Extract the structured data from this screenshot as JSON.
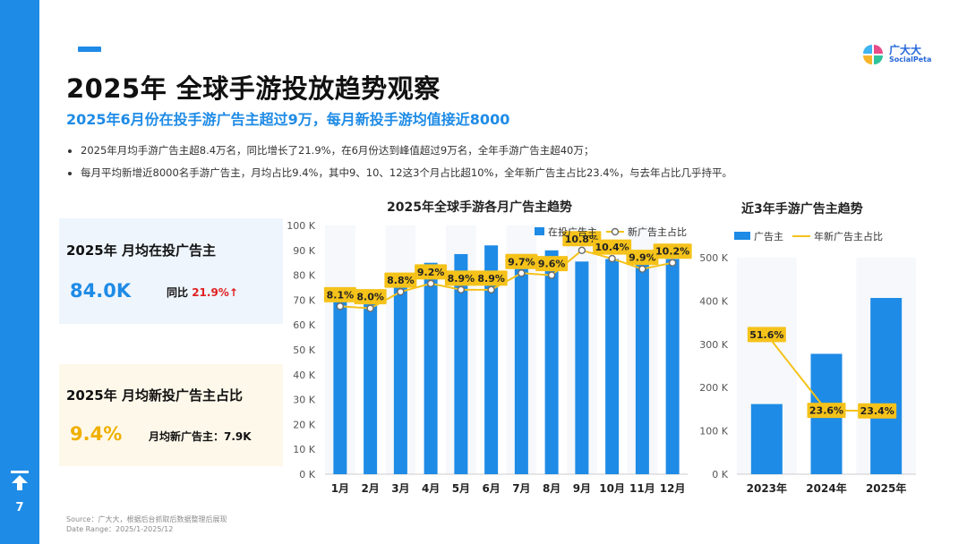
{
  "page": {
    "title": "2025年 全球手游投放趋势观察",
    "subtitle": "2025年6月份在投手游广告主超过9万，每月新投手游均值接近8000",
    "page_number": "7",
    "bullets": [
      "2025年月均手游广告主超8.4万名，同比增长了21.9%，在6月份达到峰值超过9万名，全年手游广告主超40万；",
      "每月平均新增近8000名手游广告主，月均占比9.4%，其中9、10、12这3个月占比超10%，全年新广告主占比23.4%，与去年占比几乎持平。"
    ],
    "source_lines": [
      "Source：广大大，根据后台抓取后数据整理后展现",
      "Date Range：2025/1-2025/12"
    ]
  },
  "logo": {
    "name": "广大大",
    "sub": "SocialPeta"
  },
  "cards": {
    "monthly_active": {
      "title": "2025年 月均在投广告主",
      "value": "84.0K",
      "yoy_label": "同比",
      "yoy_value": "21.9%↑"
    },
    "monthly_new": {
      "title": "2025年 月均新投广告主占比",
      "value": "9.4%",
      "note": "月均新广告主：7.9K"
    }
  },
  "colors": {
    "accent": "#1e8be6",
    "bar": "#1e8be6",
    "line": "#f5c21a",
    "label_bg": "#f5c21a",
    "red": "#e02020"
  },
  "icons": {
    "nav": "arrow-up-to-top-icon",
    "logo": "four-petal-logo-icon"
  },
  "chart_data": [
    {
      "type": "bar",
      "title": "2025年全球手游各月广告主趋势",
      "categories": [
        "1月",
        "2月",
        "3月",
        "4月",
        "5月",
        "6月",
        "7月",
        "8月",
        "9月",
        "10月",
        "11月",
        "12月"
      ],
      "ylim": [
        0,
        100000
      ],
      "yticks": [
        "0 K",
        "10 K",
        "20 K",
        "30 K",
        "40 K",
        "50 K",
        "60 K",
        "70 K",
        "80 K",
        "90 K",
        "100 K"
      ],
      "legend_position": "top-right",
      "grid": false,
      "series": [
        {
          "name": "在投广告主",
          "type": "bar",
          "values": [
            71000,
            69000,
            79500,
            85000,
            88500,
            92000,
            87000,
            90000,
            85500,
            86500,
            85500,
            86500
          ]
        },
        {
          "name": "新广告主占比",
          "type": "line",
          "values": [
            8.1,
            8.0,
            8.8,
            9.2,
            8.9,
            8.9,
            9.7,
            9.6,
            10.8,
            10.4,
            9.9,
            10.2
          ],
          "labels": [
            "8.1%",
            "8.0%",
            "8.8%",
            "9.2%",
            "8.9%",
            "8.9%",
            "9.7%",
            "9.6%",
            "10.8%",
            "10.4%",
            "9.9%",
            "10.2%"
          ]
        }
      ]
    },
    {
      "type": "bar",
      "title": "近3年手游广告主趋势",
      "categories": [
        "2023年",
        "2024年",
        "2025年"
      ],
      "ylim": [
        0,
        500000
      ],
      "yticks": [
        "0 K",
        "100 K",
        "200 K",
        "300 K",
        "400 K",
        "500 K"
      ],
      "legend_position": "top",
      "grid": false,
      "series": [
        {
          "name": "广告主",
          "type": "bar",
          "values": [
            162000,
            278000,
            407000
          ]
        },
        {
          "name": "年新广告主占比",
          "type": "line",
          "values": [
            51.6,
            23.6,
            23.4
          ],
          "labels": [
            "51.6%",
            "23.6%",
            "23.4%"
          ]
        }
      ]
    }
  ]
}
